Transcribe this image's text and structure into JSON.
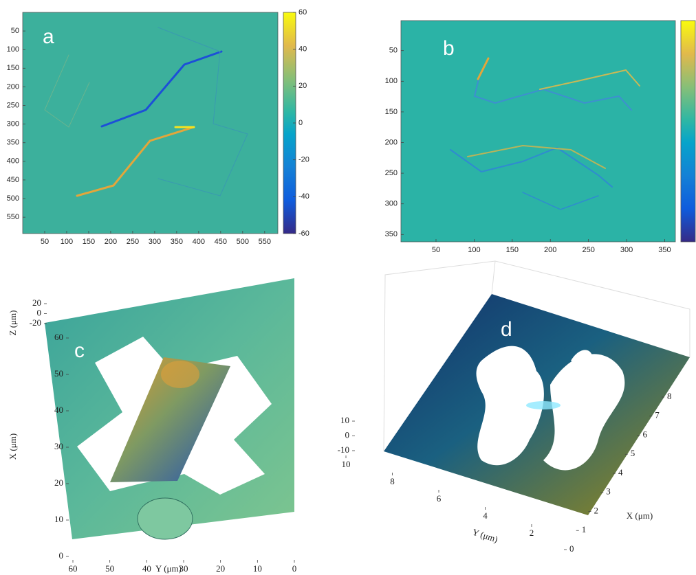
{
  "chart_data": [
    {
      "type": "heatmap",
      "label": "a",
      "xlim": [
        0,
        580
      ],
      "ylim": [
        0,
        594
      ],
      "xticks": [
        50,
        100,
        150,
        200,
        250,
        300,
        350,
        400,
        450,
        500,
        550
      ],
      "yticks": [
        50,
        100,
        150,
        200,
        250,
        300,
        350,
        400,
        450,
        500,
        550
      ],
      "clim": [
        -60,
        60
      ],
      "cticks": [
        -60,
        -40,
        -20,
        0,
        20,
        40,
        60
      ],
      "color": "#3cb09c"
    },
    {
      "type": "heatmap",
      "label": "b",
      "xlim": [
        4,
        364
      ],
      "ylim": [
        1,
        362
      ],
      "xticks": [
        50,
        100,
        150,
        200,
        250,
        300,
        350
      ],
      "yticks": [
        50,
        100,
        150,
        200,
        250,
        300,
        350
      ],
      "color": "#2bb3a6"
    },
    {
      "type": "surface",
      "label": "c",
      "xlim": [
        0,
        60
      ],
      "ylim": [
        0,
        60
      ],
      "zlim": [
        -20,
        20
      ],
      "xticks": [
        0,
        10,
        20,
        30,
        40,
        50,
        60
      ],
      "yticks": [
        0,
        10,
        20,
        30,
        40,
        50,
        60
      ],
      "zticks": [
        -20,
        0,
        20
      ],
      "xlabel": "X (μm)",
      "ylabel": "Y (μm)",
      "zlabel": "Z (μm)"
    },
    {
      "type": "surface",
      "label": "d",
      "xlim": [
        0,
        9
      ],
      "ylim": [
        0,
        10
      ],
      "zlim": [
        -10,
        10
      ],
      "xticks": [
        0,
        1,
        2,
        3,
        4,
        5,
        6,
        7,
        8
      ],
      "yticks": [
        2,
        4,
        6,
        8,
        10
      ],
      "zticks": [
        -10,
        0,
        10
      ],
      "xlabel": "X (μm)",
      "ylabel": "Y (μm)"
    }
  ]
}
